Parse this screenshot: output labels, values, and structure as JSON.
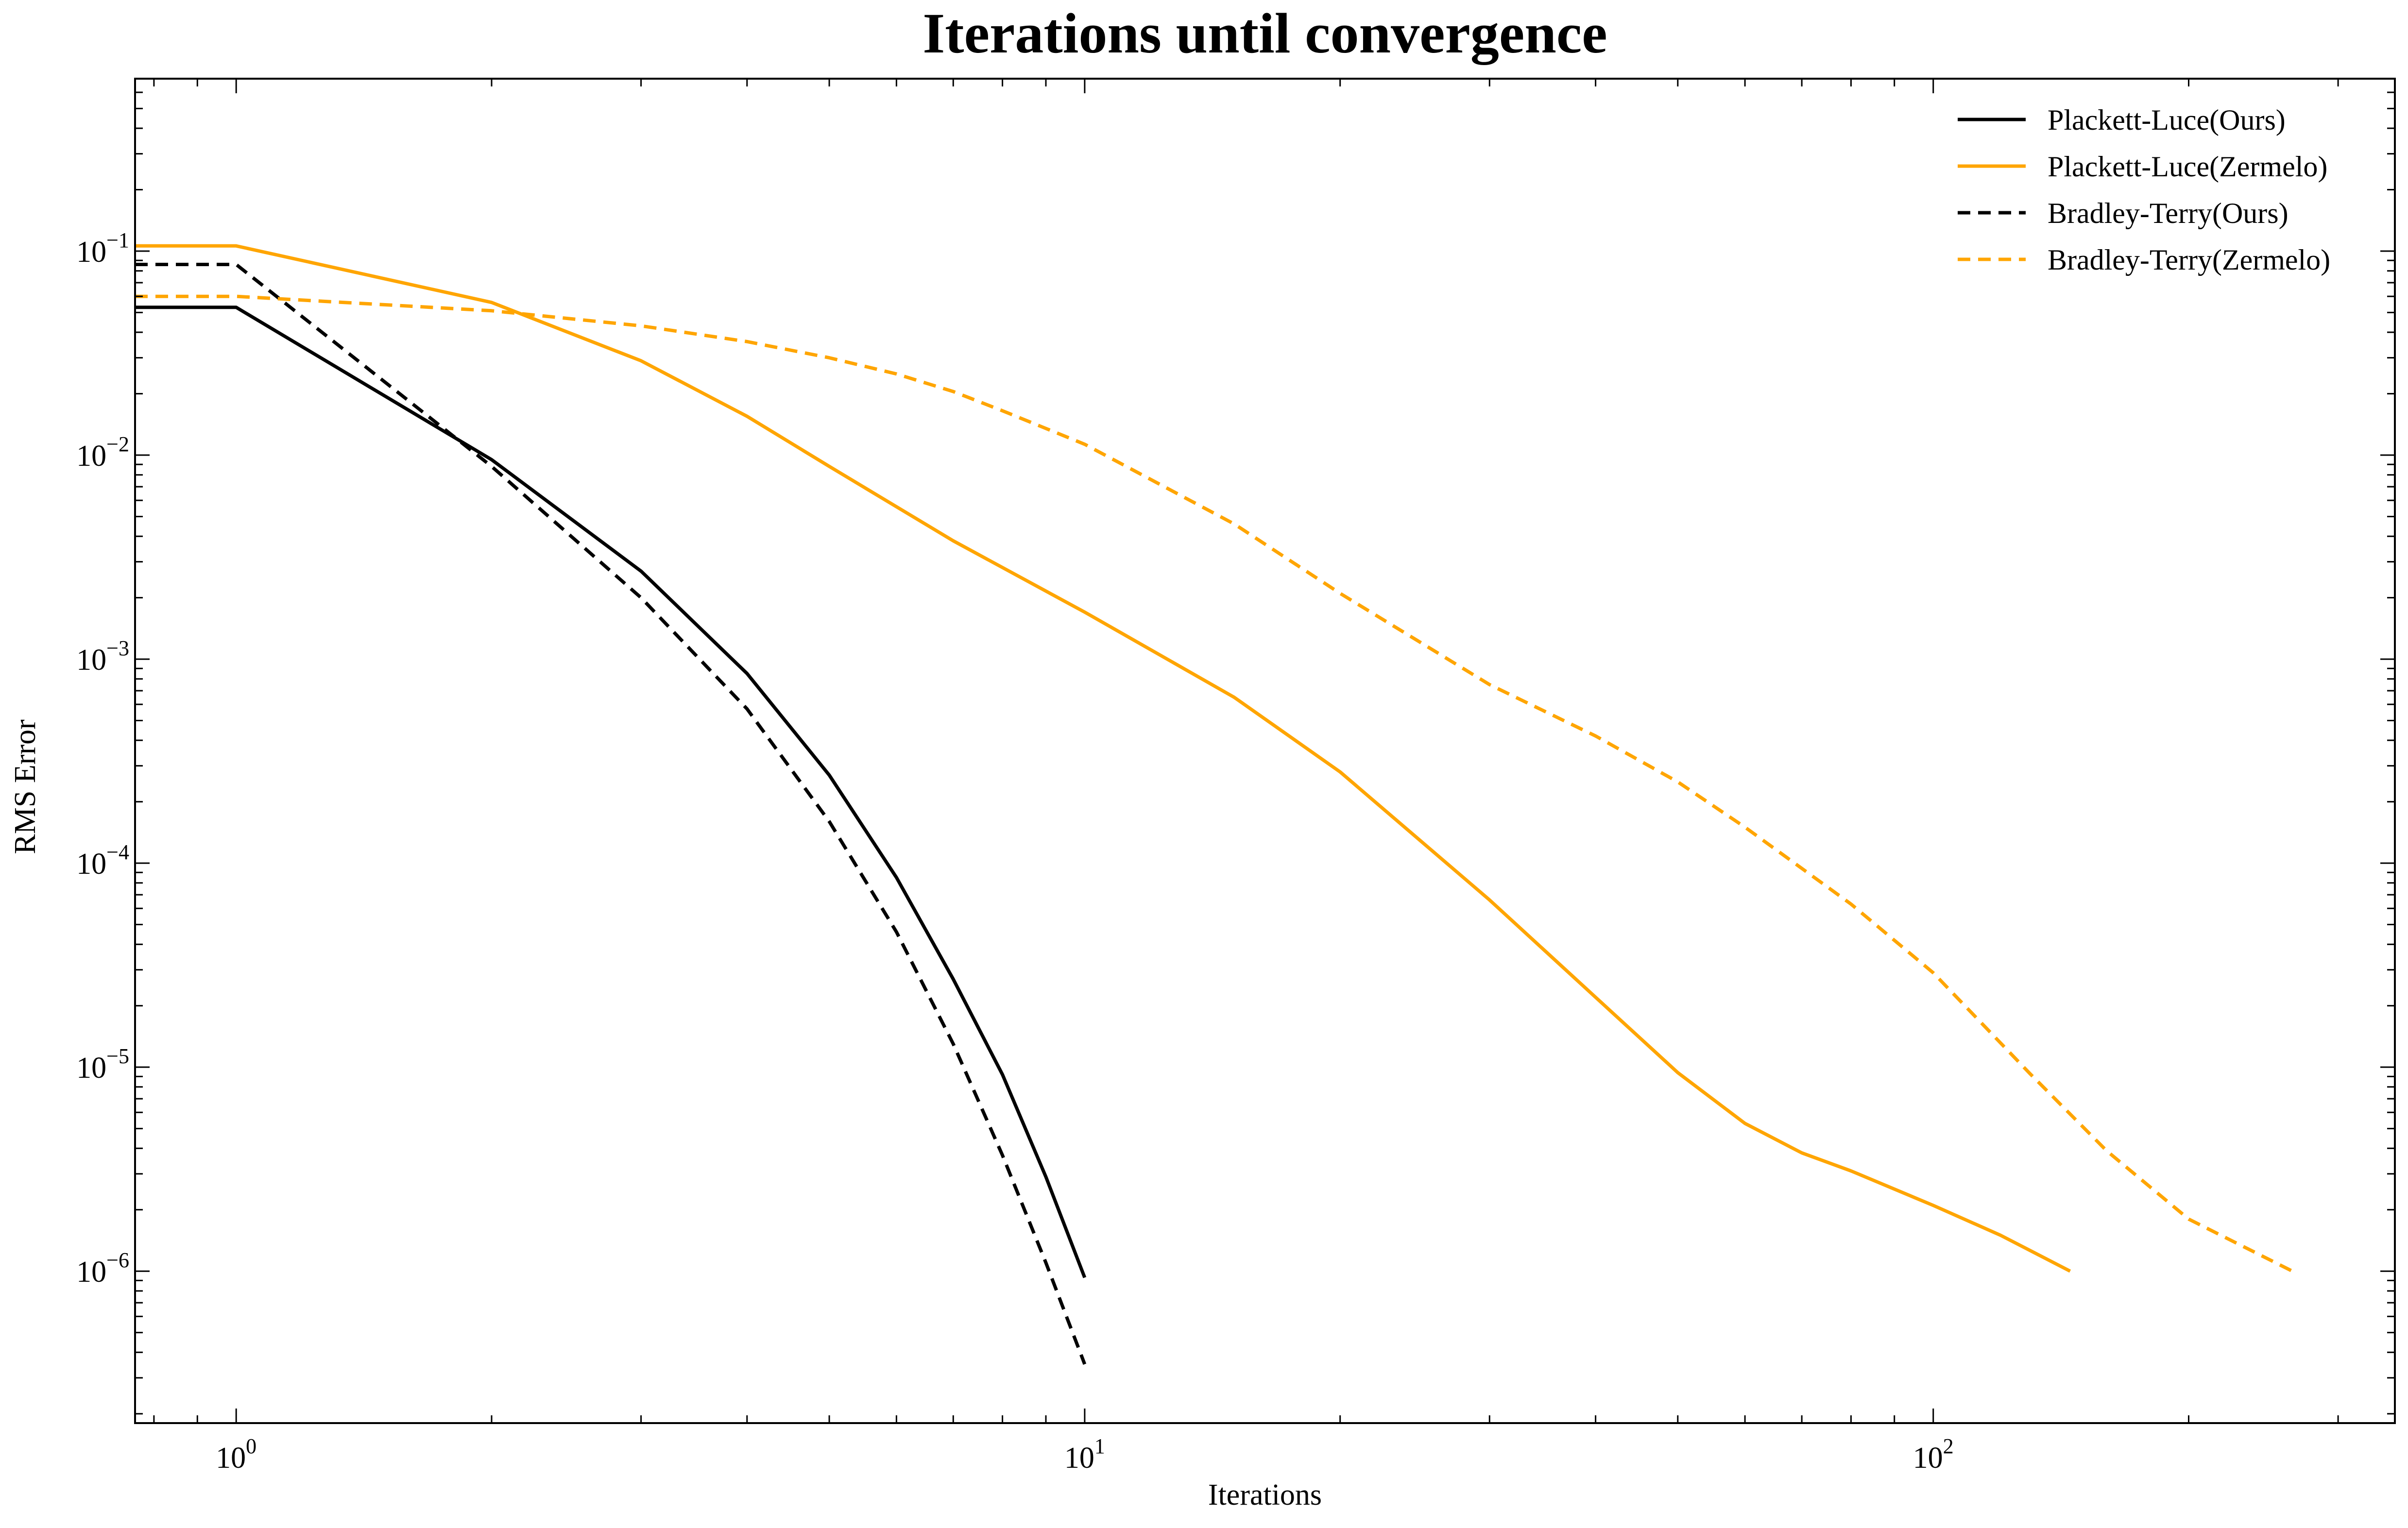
{
  "chart_data": {
    "type": "line",
    "title": "Iterations until convergence",
    "xlabel": "Iterations",
    "ylabel": "RMS Error",
    "xscale": "log",
    "yscale": "log",
    "xlim": [
      0.76,
      350
    ],
    "ylim": [
      1.8e-07,
      0.7
    ],
    "x_ticks": [
      {
        "value": 1,
        "base": "10",
        "exp": "0"
      },
      {
        "value": 10,
        "base": "10",
        "exp": "1"
      },
      {
        "value": 100,
        "base": "10",
        "exp": "2"
      }
    ],
    "y_ticks": [
      {
        "value": 0.1,
        "base": "10",
        "exp": "−1"
      },
      {
        "value": 0.01,
        "base": "10",
        "exp": "−2"
      },
      {
        "value": 0.001,
        "base": "10",
        "exp": "−3"
      },
      {
        "value": 0.0001,
        "base": "10",
        "exp": "−4"
      },
      {
        "value": 1e-05,
        "base": "10",
        "exp": "−5"
      },
      {
        "value": 1e-06,
        "base": "10",
        "exp": "−6"
      }
    ],
    "legend_position": "top-right",
    "grid": false,
    "series": [
      {
        "name": "Plackett-Luce(Ours)",
        "color": "#000000",
        "dash": "solid",
        "x": [
          0.76,
          1,
          2,
          3,
          4,
          5,
          6,
          7,
          8,
          9,
          10
        ],
        "y": [
          0.053,
          0.053,
          0.0095,
          0.0027,
          0.00085,
          0.00027,
          8.5e-05,
          2.7e-05,
          9.2e-06,
          2.9e-06,
          9.3e-07
        ]
      },
      {
        "name": "Plackett-Luce(Zermelo)",
        "color": "#FFA500",
        "dash": "solid",
        "x": [
          0.76,
          1,
          2,
          3,
          4,
          5,
          7,
          10,
          15,
          20,
          30,
          40,
          50,
          60,
          70,
          80,
          100,
          120,
          145
        ],
        "y": [
          0.106,
          0.106,
          0.056,
          0.029,
          0.0155,
          0.0088,
          0.0038,
          0.0017,
          0.00065,
          0.00028,
          6.6e-05,
          2.2e-05,
          9.4e-06,
          5.3e-06,
          3.8e-06,
          3.1e-06,
          2.1e-06,
          1.5e-06,
          1e-06
        ]
      },
      {
        "name": "Bradley-Terry(Ours)",
        "color": "#000000",
        "dash": "dashed",
        "x": [
          0.76,
          1,
          2,
          3,
          4,
          5,
          6,
          7,
          8,
          9,
          10
        ],
        "y": [
          0.086,
          0.086,
          0.0088,
          0.002,
          0.00057,
          0.00016,
          4.6e-05,
          1.3e-05,
          3.7e-06,
          1.1e-06,
          3.5e-07
        ]
      },
      {
        "name": "Bradley-Terry(Zermelo)",
        "color": "#FFA500",
        "dash": "dashed",
        "x": [
          0.76,
          1,
          2,
          3,
          4,
          5,
          6,
          7,
          8,
          10,
          15,
          20,
          30,
          40,
          50,
          60,
          80,
          100,
          130,
          160,
          200,
          265
        ],
        "y": [
          0.06,
          0.06,
          0.051,
          0.043,
          0.036,
          0.03,
          0.025,
          0.0205,
          0.0165,
          0.0113,
          0.0046,
          0.0021,
          0.00075,
          0.00042,
          0.00025,
          0.00015,
          6.3e-05,
          2.9e-05,
          9.3e-06,
          3.9e-06,
          1.8e-06,
          1e-06
        ]
      }
    ]
  }
}
